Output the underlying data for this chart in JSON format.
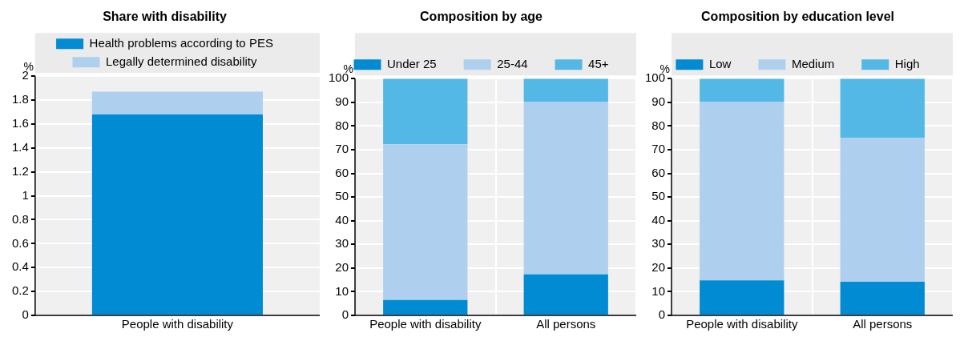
{
  "chart_data": [
    {
      "type": "bar",
      "title": "Share with disability",
      "ylabel": "%",
      "categories": [
        "People with disability"
      ],
      "stacked": true,
      "ylim": [
        0,
        2
      ],
      "yticks": [
        0,
        {
          "value": 0.2,
          "label": "0.2"
        },
        {
          "value": 0.4,
          "label": "0.4"
        },
        {
          "value": 0.6,
          "label": "0.6"
        },
        {
          "value": 0.8,
          "label": "0.8"
        },
        1,
        {
          "value": 1.2,
          "label": "1.2"
        },
        {
          "value": 1.4,
          "label": "1.4"
        },
        {
          "value": 1.6,
          "label": "1.6"
        },
        {
          "value": 1.8,
          "label": "1.8"
        },
        2
      ],
      "grid": "y",
      "legend": "top",
      "series": [
        {
          "name": "Health problems according to PES",
          "color": "#008bd2",
          "values": [
            1.68
          ]
        },
        {
          "name": "Legally determined disability",
          "color": "#aecfee",
          "values": [
            0.19
          ]
        }
      ]
    },
    {
      "type": "bar",
      "title": "Composition by age",
      "ylabel": "%",
      "categories": [
        "People with disability",
        "All persons"
      ],
      "stacked": true,
      "ylim": [
        0,
        100
      ],
      "yticks": [
        0,
        10,
        20,
        30,
        40,
        50,
        60,
        70,
        80,
        90,
        100
      ],
      "grid": true,
      "legend": "top",
      "series": [
        {
          "name": "Under 25",
          "color": "#008bd2",
          "values": [
            6.5,
            17.3
          ]
        },
        {
          "name": "25-44",
          "color": "#aecfee",
          "values": [
            65.8,
            73
          ]
        },
        {
          "name": "45+",
          "color": "#54b8e6",
          "values": [
            27.7,
            9.7
          ]
        }
      ]
    },
    {
      "type": "bar",
      "title": "Composition by education level",
      "ylabel": "%",
      "categories": [
        "People with disability",
        "All persons"
      ],
      "stacked": true,
      "ylim": [
        0,
        100
      ],
      "yticks": [
        0,
        10,
        20,
        30,
        40,
        50,
        60,
        70,
        80,
        90,
        100
      ],
      "grid": true,
      "legend": "top",
      "series": [
        {
          "name": "Low",
          "color": "#008bd2",
          "values": [
            14.8,
            14.2
          ]
        },
        {
          "name": "Medium",
          "color": "#aecfee",
          "values": [
            75.5,
            60.8
          ]
        },
        {
          "name": "High",
          "color": "#54b8e6",
          "values": [
            9.7,
            25
          ]
        }
      ]
    }
  ]
}
